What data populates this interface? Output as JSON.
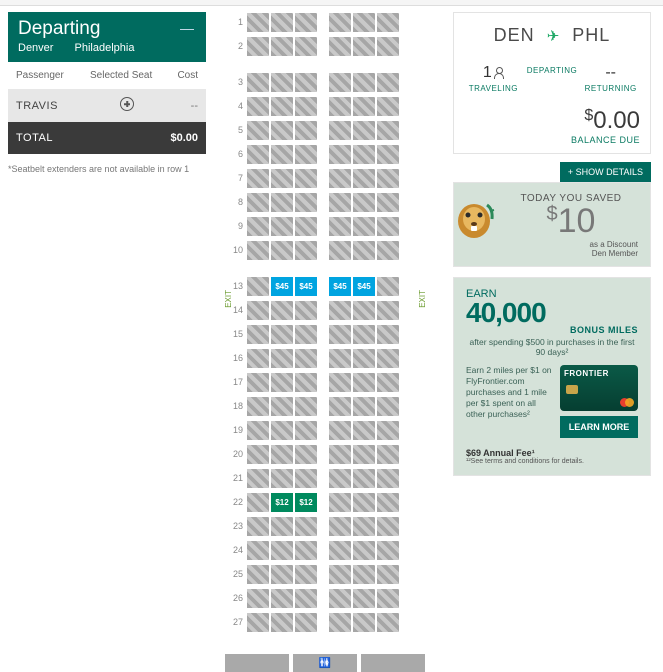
{
  "departing": {
    "title": "Departing",
    "from": "Denver",
    "to": "Philadelphia",
    "dash": "—",
    "col_passenger": "Passenger",
    "col_seat": "Selected Seat",
    "col_cost": "Cost",
    "passenger_name": "TRAVIS",
    "passenger_cost": "--",
    "total_label": "TOTAL",
    "total_value": "$0.00",
    "footnote": "*Seatbelt extenders are not available in row 1"
  },
  "seatmap": {
    "exit_label": "EXIT",
    "rows": [
      {
        "num": "1",
        "seats": [
          "u",
          "u",
          "u",
          "a",
          "u",
          "u",
          "u"
        ]
      },
      {
        "num": "2",
        "seats": [
          "u",
          "u",
          "u",
          "a",
          "u",
          "u",
          "u"
        ]
      },
      {
        "num": "",
        "seats": []
      },
      {
        "num": "3",
        "seats": [
          "u",
          "u",
          "u",
          "a",
          "u",
          "u",
          "u"
        ]
      },
      {
        "num": "4",
        "seats": [
          "u",
          "u",
          "u",
          "a",
          "u",
          "u",
          "u"
        ]
      },
      {
        "num": "5",
        "seats": [
          "u",
          "u",
          "u",
          "a",
          "u",
          "u",
          "u"
        ]
      },
      {
        "num": "6",
        "seats": [
          "u",
          "u",
          "u",
          "a",
          "u",
          "u",
          "u"
        ]
      },
      {
        "num": "7",
        "seats": [
          "u",
          "u",
          "u",
          "a",
          "u",
          "u",
          "u"
        ]
      },
      {
        "num": "8",
        "seats": [
          "u",
          "u",
          "u",
          "a",
          "u",
          "u",
          "u"
        ]
      },
      {
        "num": "9",
        "seats": [
          "u",
          "u",
          "u",
          "a",
          "u",
          "u",
          "u"
        ]
      },
      {
        "num": "10",
        "seats": [
          "u",
          "u",
          "u",
          "a",
          "u",
          "u",
          "u"
        ]
      },
      {
        "num": "",
        "seats": []
      },
      {
        "num": "13",
        "seats": [
          "u",
          "$45",
          "$45",
          "a",
          "$45",
          "$45",
          "u"
        ],
        "priced_color": "#00a4e0"
      },
      {
        "num": "14",
        "seats": [
          "u",
          "u",
          "u",
          "a",
          "u",
          "u",
          "u"
        ]
      },
      {
        "num": "15",
        "seats": [
          "u",
          "u",
          "u",
          "a",
          "u",
          "u",
          "u"
        ]
      },
      {
        "num": "16",
        "seats": [
          "u",
          "u",
          "u",
          "a",
          "u",
          "u",
          "u"
        ]
      },
      {
        "num": "17",
        "seats": [
          "u",
          "u",
          "u",
          "a",
          "u",
          "u",
          "u"
        ]
      },
      {
        "num": "18",
        "seats": [
          "u",
          "u",
          "u",
          "a",
          "u",
          "u",
          "u"
        ]
      },
      {
        "num": "19",
        "seats": [
          "u",
          "u",
          "u",
          "a",
          "u",
          "u",
          "u"
        ]
      },
      {
        "num": "20",
        "seats": [
          "u",
          "u",
          "u",
          "a",
          "u",
          "u",
          "u"
        ]
      },
      {
        "num": "21",
        "seats": [
          "u",
          "u",
          "u",
          "a",
          "u",
          "u",
          "u"
        ]
      },
      {
        "num": "22",
        "seats": [
          "u",
          "$12",
          "$12",
          "a",
          "u",
          "u",
          "u"
        ],
        "priced_color": "#008a5e"
      },
      {
        "num": "23",
        "seats": [
          "u",
          "u",
          "u",
          "a",
          "u",
          "u",
          "u"
        ]
      },
      {
        "num": "24",
        "seats": [
          "u",
          "u",
          "u",
          "a",
          "u",
          "u",
          "u"
        ]
      },
      {
        "num": "25",
        "seats": [
          "u",
          "u",
          "u",
          "a",
          "u",
          "u",
          "u"
        ]
      },
      {
        "num": "26",
        "seats": [
          "u",
          "u",
          "u",
          "a",
          "u",
          "u",
          "u"
        ]
      },
      {
        "num": "27",
        "seats": [
          "u",
          "u",
          "u",
          "a",
          "u",
          "u",
          "u"
        ]
      }
    ],
    "seat_unavailable_bg": "repeating-linear-gradient(45deg,#a6a6a6 0 4px,#c9c9c9 4px 8px)",
    "seat_plain_bg": "#a9a9a9"
  },
  "trip": {
    "from_code": "DEN",
    "to_code": "PHL",
    "traveling_val": "1",
    "traveling_lbl": "TRAVELING",
    "departing_val": "",
    "departing_lbl": "DEPARTING",
    "returning_val": "--",
    "returning_lbl": "RETURNING",
    "balance_amount": "0.00",
    "balance_currency": "$",
    "balance_label": "BALANCE DUE",
    "show_details": "+ SHOW DETAILS"
  },
  "savings": {
    "headline": "TODAY YOU SAVED",
    "amount": "10",
    "currency": "$",
    "sub1": "as a Discount",
    "sub2": "Den Member"
  },
  "promo": {
    "earn": "EARN",
    "bignum": "40,000",
    "bonus": "BONUS MILES",
    "after": "after spending $500 in purchases in the first 90 days²",
    "body": "Earn 2 miles per $1 on FlyFrontier.com purchases and 1 mile per $1 spent on all other purchases²",
    "card_brand": "FRONTIER",
    "learn": "LEARN MORE",
    "fee": "$69 Annual Fee¹",
    "terms": "¹²See terms and conditions for details."
  },
  "colors": {
    "brand_green": "#006b5f",
    "accent_blue": "#00a4e0",
    "accent_green": "#008a5e",
    "panel_mint": "#d5e2d9",
    "dark_bar": "#3a3a3a"
  }
}
